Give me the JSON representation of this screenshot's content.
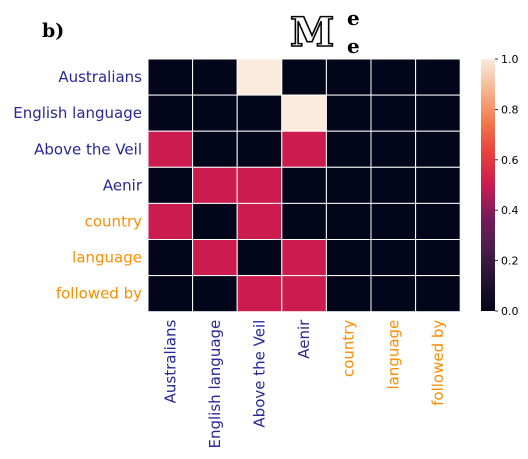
{
  "panel_label": "b)",
  "chart_data": {
    "type": "heatmap",
    "title": {
      "main": "M",
      "superscript": "e",
      "subscript": "e"
    },
    "row_labels": [
      "Australians",
      "English language",
      "Above the Veil",
      "Aenir",
      "country",
      "language",
      "followed by"
    ],
    "col_labels": [
      "Australians",
      "English language",
      "Above the Veil",
      "Aenir",
      "country",
      "language",
      "followed by"
    ],
    "label_colors": [
      "#27279b",
      "#27279b",
      "#27279b",
      "#27279b",
      "#ff8c00",
      "#ff8c00",
      "#ff8c00"
    ],
    "values": [
      [
        0,
        0,
        1,
        0,
        0,
        0,
        0
      ],
      [
        0,
        0,
        0,
        1,
        0,
        0,
        0
      ],
      [
        0.5,
        0,
        0,
        0.5,
        0,
        0,
        0
      ],
      [
        0,
        0.5,
        0.5,
        0,
        0,
        0,
        0
      ],
      [
        0.5,
        0,
        0.5,
        0,
        0,
        0,
        0
      ],
      [
        0,
        0.5,
        0,
        0.5,
        0,
        0,
        0
      ],
      [
        0,
        0,
        0.5,
        0.5,
        0,
        0,
        0
      ]
    ],
    "vmin": 0,
    "vmax": 1,
    "colormap": "rocket",
    "colorbar_ticks": [
      "1.0",
      "0.8",
      "0.6",
      "0.4",
      "0.2",
      "0.0"
    ],
    "colorbar_tick_values": [
      1.0,
      0.8,
      0.6,
      0.4,
      0.2,
      0.0
    ],
    "grid_color": "#ffffff"
  }
}
